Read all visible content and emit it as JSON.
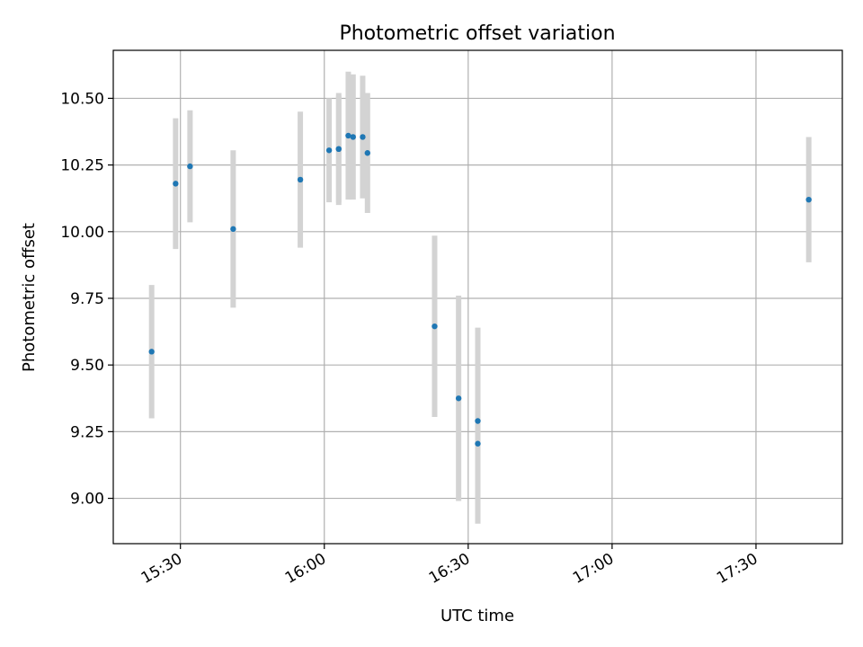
{
  "chart_data": {
    "type": "scatter",
    "title": "Photometric offset variation",
    "xlabel": "UTC time",
    "ylabel": "Photometric offset",
    "x_ticks": [
      "15:30",
      "16:00",
      "16:30",
      "17:00",
      "17:30"
    ],
    "y_ticks": [
      "9.00",
      "9.25",
      "9.50",
      "9.75",
      "10.00",
      "10.25",
      "10.50"
    ],
    "xlim": [
      "15:16",
      "17:48"
    ],
    "ylim": [
      8.83,
      10.68
    ],
    "grid": true,
    "series": [
      {
        "point_color": "#1f77b4",
        "errorbar_color": "#d3d3d3",
        "points": [
          {
            "x": "15:24",
            "y": 9.55,
            "err": 0.25
          },
          {
            "x": "15:29",
            "y": 10.18,
            "err": 0.245
          },
          {
            "x": "15:32",
            "y": 10.245,
            "err": 0.21
          },
          {
            "x": "15:41",
            "y": 10.01,
            "err": 0.295
          },
          {
            "x": "15:55",
            "y": 10.195,
            "err": 0.255
          },
          {
            "x": "16:01",
            "y": 10.305,
            "err": 0.195
          },
          {
            "x": "16:03",
            "y": 10.31,
            "err": 0.21
          },
          {
            "x": "16:03",
            "y": 10.31,
            "err": 0.2
          },
          {
            "x": "16:05",
            "y": 10.36,
            "err": 0.24
          },
          {
            "x": "16:06",
            "y": 10.355,
            "err": 0.235
          },
          {
            "x": "16:08",
            "y": 10.355,
            "err": 0.23
          },
          {
            "x": "16:09",
            "y": 10.295,
            "err": 0.225
          },
          {
            "x": "16:23",
            "y": 9.645,
            "err": 0.34
          },
          {
            "x": "16:28",
            "y": 9.375,
            "err": 0.385
          },
          {
            "x": "16:32",
            "y": 9.29,
            "err": 0.35
          },
          {
            "x": "16:32",
            "y": 9.205,
            "err": 0.3
          },
          {
            "x": "17:41",
            "y": 10.12,
            "err": 0.235
          }
        ]
      }
    ]
  }
}
